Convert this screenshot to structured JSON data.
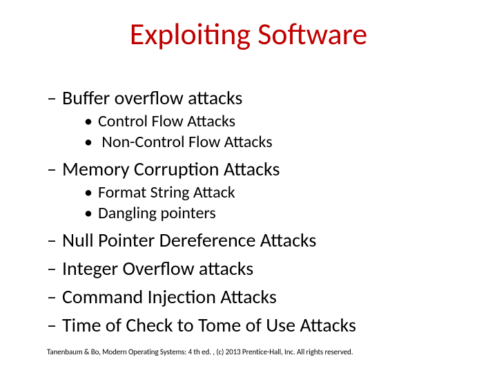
{
  "title": {
    "text": "Exploiting Software",
    "color": "#c00000",
    "fontsize": 44
  },
  "body_text_color": "#000000",
  "level1_fontsize": 28,
  "level2_fontsize": 24,
  "background_color": "#ffffff",
  "items": [
    {
      "label": "Buffer overflow attacks",
      "sub": [
        {
          "label": "Control Flow Attacks"
        },
        {
          "label": " Non-Control Flow Attacks"
        }
      ]
    },
    {
      "label": "Memory Corruption Attacks",
      "sub": [
        {
          "label": "Format String Attack"
        },
        {
          "label": "Dangling pointers"
        }
      ]
    },
    {
      "label": "Null Pointer Dereference Attacks"
    },
    {
      "label": "Integer Overflow attacks"
    },
    {
      "label": "Command Injection Attacks"
    },
    {
      "label": "Time of Check to Tome of Use Attacks"
    }
  ],
  "footer": "Tanenbaum & Bo, Modern  Operating Systems: 4 th ed. , (c) 2013 Prentice-Hall, Inc. All rights reserved."
}
